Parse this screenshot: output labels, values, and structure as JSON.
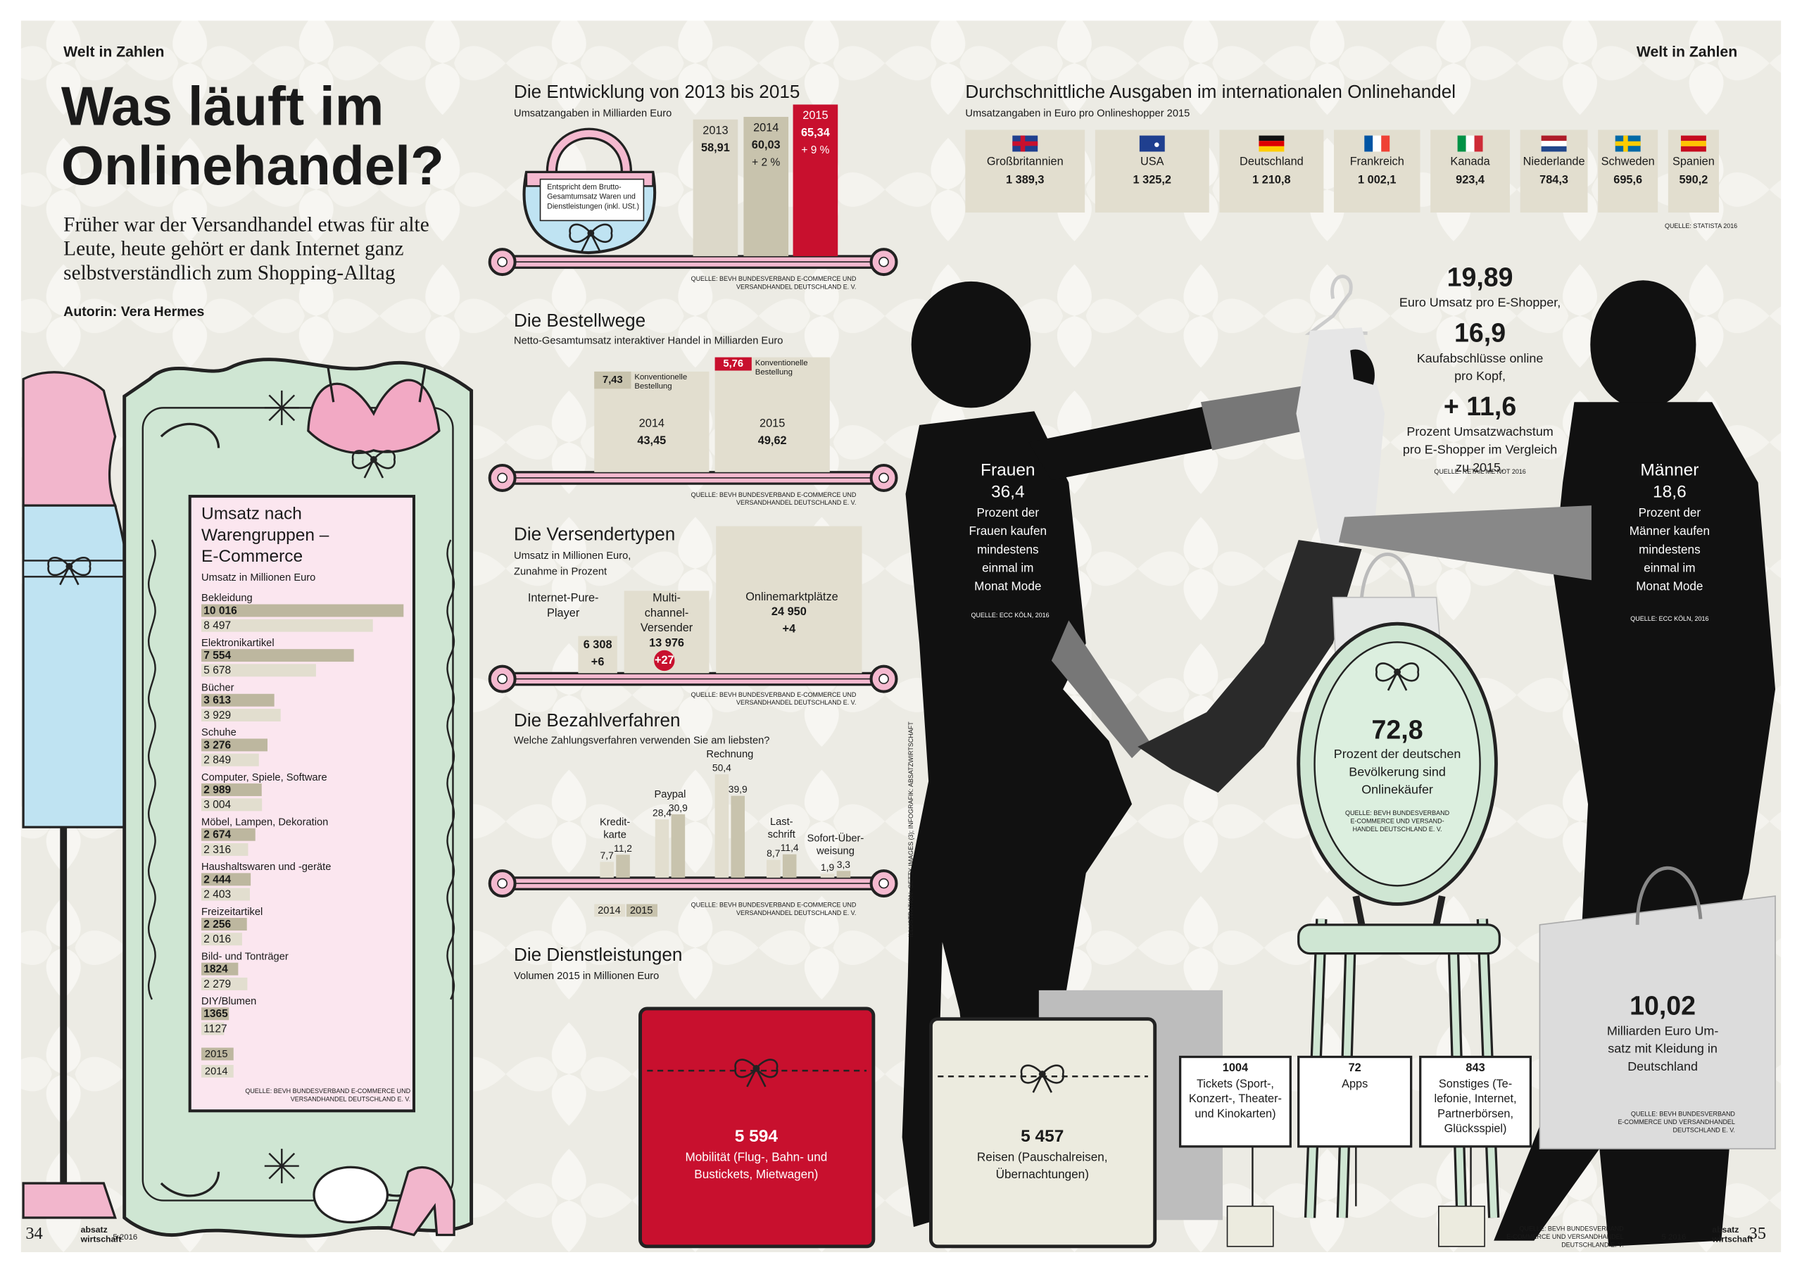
{
  "header": {
    "section_left": "Welt in Zahlen",
    "section_right": "Welt in Zahlen",
    "title": [
      "Was läuft im",
      "Onlinehandel?"
    ],
    "subtitle": [
      "Früher war der Versandhandel etwas für alte",
      "Leute, heute gehört er dank Internet ganz",
      "selbstverständlich zum Shopping-Alltag"
    ],
    "author": "Autorin: Vera Hermes"
  },
  "chart_data": [
    {
      "type": "hbar",
      "title": [
        "Umsatz nach",
        "Warengruppen –",
        "E-Commerce"
      ],
      "subtitle": "Umsatz in Millionen Euro",
      "categories": [
        "Bekleidung",
        "Elektronikartikel",
        "Bücher",
        "Schuhe",
        "Computer, Spiele, Software",
        "Möbel, Lampen, Dekoration",
        "Haushaltswaren und -geräte",
        "Freizeitartikel",
        "Bild- und Tonträger",
        "DIY/Blumen"
      ],
      "series": [
        {
          "name": "2015",
          "color": "#bdb79f",
          "values": [
            10016,
            7554,
            3613,
            3276,
            2989,
            2674,
            2444,
            2256,
            1824,
            1365
          ],
          "value_labels": [
            "10 016",
            "7 554",
            "3 613",
            "3 276",
            "2 989",
            "2 674",
            "2 444",
            "2 256",
            "1824",
            "1365"
          ]
        },
        {
          "name": "2014",
          "color": "#e2decf",
          "values": [
            8497,
            5678,
            3929,
            2849,
            3004,
            2316,
            2403,
            2016,
            2279,
            1127
          ],
          "value_labels": [
            "8 497",
            "5 678",
            "3 929",
            "2 849",
            "3 004",
            "2 316",
            "2 403",
            "2 016",
            "2 279",
            "1127"
          ]
        }
      ],
      "source": [
        "QUELLE: BEVH BUNDESVERBAND E-COMMERCE UND",
        "VERSANDHANDEL DEUTSCHLAND E. V."
      ]
    },
    {
      "type": "bar",
      "title": "Die Entwicklung von 2013 bis 2015",
      "subtitle": "Umsatzangaben in Milliarden Euro",
      "note": [
        "Entspricht dem Brutto-",
        "Gesamtumsatz Waren und",
        "Dienstleistungen (inkl. USt.)"
      ],
      "categories": [
        "2013",
        "2014",
        "2015"
      ],
      "values": [
        58.91,
        60.03,
        65.34
      ],
      "value_labels": [
        "58,91",
        "60,03",
        "65,34"
      ],
      "changes": [
        null,
        "+ 2 %",
        "+ 9 %"
      ],
      "colors": [
        "#dcd8c9",
        "#c8c3ad",
        "#c8102e"
      ],
      "source": [
        "QUELLE: BEVH BUNDESVERBAND E-COMMERCE UND",
        "VERSANDHANDEL DEUTSCHLAND E. V."
      ]
    },
    {
      "type": "nested",
      "title": "Die Bestellwege",
      "subtitle": "Netto-Gesamtumsatz interaktiver Handel in Milliarden Euro",
      "categories": [
        "2014",
        "2015"
      ],
      "totals": {
        "values": [
          43.45,
          49.62
        ],
        "value_labels": [
          "43,45",
          "49,62"
        ],
        "color": "#e2decf"
      },
      "conventional": {
        "name": [
          "Konventionelle",
          "Bestellung"
        ],
        "values": [
          7.43,
          5.76
        ],
        "value_labels": [
          "7,43",
          "5,76"
        ],
        "colors": [
          "#c8c3ad",
          "#c8102e"
        ]
      },
      "source": [
        "QUELLE: BEVH BUNDESVERBAND E-COMMERCE UND",
        "VERSANDHANDEL DEUTSCHLAND E. V."
      ]
    },
    {
      "type": "bar",
      "title": "Die Versendertypen",
      "subtitle": [
        "Umsatz in Millionen Euro,",
        "Zunahme in Prozent"
      ],
      "categories": [
        [
          "Internet-Pure-",
          "Player"
        ],
        [
          "Multi-",
          "channel-",
          "Versender"
        ],
        [
          "Onlinemarktplätze"
        ]
      ],
      "values": [
        6308,
        13976,
        24950
      ],
      "value_labels": [
        "6 308",
        "13 976",
        "24 950"
      ],
      "growth": [
        6,
        27,
        4
      ],
      "growth_labels": [
        "+6",
        "+27",
        "+4"
      ],
      "growth_colors": [
        null,
        "#c8102e",
        null
      ],
      "color": "#e2decf",
      "source": [
        "QUELLE: BEVH BUNDESVERBAND E-COMMERCE UND",
        "VERSANDHANDEL DEUTSCHLAND E. V."
      ]
    },
    {
      "type": "grouped_bar",
      "title": "Die Bezahlverfahren",
      "subtitle": "Welche Zahlungsverfahren verwenden Sie am liebsten?",
      "categories": [
        [
          "Kredit-",
          "karte"
        ],
        [
          "Paypal"
        ],
        [
          "Rechnung"
        ],
        [
          "Last-",
          "schrift"
        ],
        [
          "Sofort-Über-",
          "weisung"
        ]
      ],
      "series": [
        {
          "name": "2014",
          "color": "#e2decf",
          "values": [
            7.7,
            28.4,
            50.4,
            8.7,
            1.9
          ],
          "value_labels": [
            "7,7",
            "28,4",
            "50,4",
            "8,7",
            "1,9"
          ]
        },
        {
          "name": "2015",
          "color": "#c8c3ad",
          "values": [
            11.2,
            30.9,
            39.9,
            11.4,
            3.3
          ],
          "value_labels": [
            "11,2",
            "30,9",
            "39,9",
            "11,4",
            "3,3"
          ]
        }
      ],
      "source": [
        "QUELLE: BEVH BUNDESVERBAND E-COMMERCE UND",
        "VERSANDHANDEL DEUTSCHLAND E. V."
      ]
    },
    {
      "type": "width_bar",
      "title": "Durchschnittliche Ausgaben im internationalen Onlinehandel",
      "subtitle": "Umsatzangaben in Euro pro Onlineshopper 2015",
      "categories": [
        "Großbritannien",
        "USA",
        "Deutschland",
        "Frankreich",
        "Kanada",
        "Niederlande",
        "Schweden",
        "Spanien"
      ],
      "values": [
        1389.3,
        1325.2,
        1210.8,
        1002.1,
        923.4,
        784.3,
        695.6,
        590.2
      ],
      "value_labels": [
        "1 389,3",
        "1 325,2",
        "1 210,8",
        "1 002,1",
        "923,4",
        "784,3",
        "695,6",
        "590,2"
      ],
      "color": "#e2decf",
      "source": "QUELLE: STATISTA 2016"
    }
  ],
  "services": {
    "title": "Die Dienstleistungen",
    "subtitle": "Volumen 2015 in Millionen Euro",
    "items": [
      {
        "value": 5594,
        "value_label": "5 594",
        "label": [
          "Mobilität (Flug-, Bahn- und",
          "Bustickets, Mietwagen)"
        ]
      },
      {
        "value": 5457,
        "value_label": "5 457",
        "label": [
          "Reisen (Pauschalreisen,",
          "Übernachtungen)"
        ]
      },
      {
        "value": 1004,
        "label": [
          "Tickets (Sport-,",
          "Konzert-, Theater-",
          "und Kinokarten)"
        ]
      },
      {
        "value": 72,
        "label": [
          "Apps"
        ]
      },
      {
        "value": 843,
        "label": [
          "Sonstiges (Te-",
          "lefonie, Internet,",
          "Partnerbörsen,",
          "Glücksspiel)"
        ]
      }
    ],
    "source": [
      "QUELLE: BEVH BUNDESVERBAND",
      "E-COMMERCE UND VERSANDHANDEL",
      "DEUTSCHLAND E. V."
    ]
  },
  "shopper": {
    "facts": [
      {
        "value": 19.89,
        "value_label": "19,89",
        "text": [
          "Euro Umsatz pro E-Shopper,"
        ]
      },
      {
        "value": 16.9,
        "value_label": "16,9",
        "text": [
          "Kaufabschlüsse online",
          "pro Kopf,"
        ]
      },
      {
        "value": 11.6,
        "value_label": "+ 11,6",
        "text": [
          "Prozent Umsatzwachstum",
          "pro E-Shopper im Vergleich",
          "zu 2015."
        ]
      }
    ],
    "source": "QUELLE: RETAIL ME NOT 2016"
  },
  "women": {
    "title": "Frauen",
    "value": 36.4,
    "value_label": "36,4",
    "text": [
      "Prozent der",
      "Frauen kaufen",
      "mindestens",
      "einmal im",
      "Monat Mode"
    ],
    "source": "QUELLE: ECC KÖLN, 2016"
  },
  "men": {
    "title": "Männer",
    "value": 18.6,
    "value_label": "18,6",
    "text": [
      "Prozent der",
      "Männer kaufen",
      "mindestens",
      "einmal im",
      "Monat Mode"
    ],
    "source": "QUELLE: ECC KÖLN, 2016"
  },
  "buyers": {
    "value": 72.8,
    "value_label": "72,8",
    "text": [
      "Prozent der deutschen",
      "Bevölkerung sind",
      "Onlinekäufer"
    ],
    "source": [
      "QUELLE: BEVH BUNDESVERBAND",
      "E-COMMERCE UND VERSAND-",
      "HANDEL DEUTSCHLAND E. V."
    ]
  },
  "clothing": {
    "value": 10.02,
    "value_label": "10,02",
    "text": [
      "Milliarden Euro Um-",
      "satz mit Kleidung in",
      "Deutschland"
    ],
    "source": [
      "QUELLE: BEVH BUNDESVERBAND",
      "E-COMMERCE UND VERSANDHANDEL",
      "DEUTSCHLAND E. V."
    ]
  },
  "footer": {
    "page_left": 34,
    "page_right": 35,
    "brand": [
      "absatz",
      "wirtschaft"
    ],
    "issue": "5 2016",
    "credit": "ILLUSTRATION: GETTY IMAGES (3); INFOGRAFIK: ABSATZWIRTSCHAFT"
  }
}
